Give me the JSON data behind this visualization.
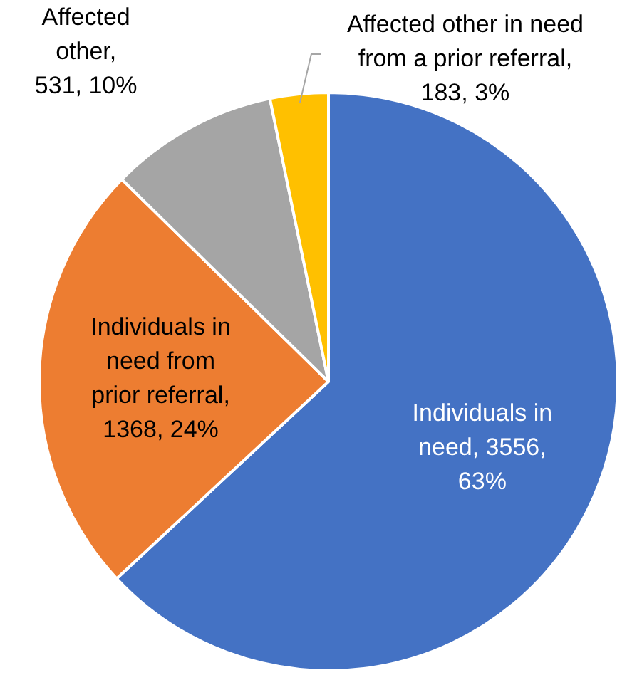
{
  "chart_data": {
    "type": "pie",
    "categories": [
      "Individuals in need",
      "Individuals in need from prior referral",
      "Affected other",
      "Affected other in need from a prior referral"
    ],
    "values": [
      3556,
      1368,
      531,
      183
    ],
    "colors": [
      "#4472c4",
      "#ed7d31",
      "#a5a5a5",
      "#ffc000"
    ],
    "value_labels": [
      ", 3556, 63%",
      ", 1368, 24%",
      ", 531, 10%",
      ", 183, 3%"
    ],
    "legend": false
  }
}
